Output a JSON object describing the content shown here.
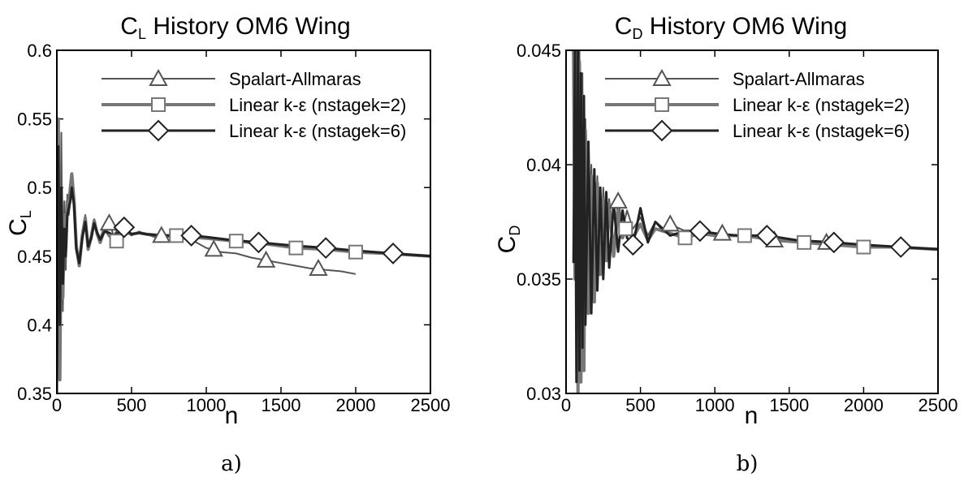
{
  "chart_data": [
    {
      "type": "line",
      "panel": "a",
      "caption": "a)",
      "title_main": "C",
      "title_sub": "L",
      "title_rest": " History OM6 Wing",
      "xlabel": "n",
      "ylabel_main": "C",
      "ylabel_sub": "L",
      "xlim": [
        0,
        2500
      ],
      "ylim": [
        0.35,
        0.6
      ],
      "xticks": [
        0,
        500,
        1000,
        1500,
        2000,
        2500
      ],
      "yticks": [
        0.35,
        0.4,
        0.45,
        0.5,
        0.55,
        0.6
      ],
      "xtick_labels": [
        "0",
        "500",
        "1000",
        "1500",
        "2000",
        "2500"
      ],
      "ytick_labels": [
        "0.35",
        "0.4",
        "0.45",
        "0.5",
        "0.55",
        "0.6"
      ],
      "legend_position": "top-right",
      "series": [
        {
          "name": "Spalart-Allmaras",
          "marker": "triangle",
          "color": "#555555",
          "stroke_width": 2,
          "x": [
            0,
            10,
            20,
            30,
            40,
            50,
            60,
            70,
            80,
            90,
            100,
            115,
            130,
            150,
            170,
            190,
            210,
            230,
            250,
            270,
            290,
            320,
            350,
            380,
            410,
            450,
            500,
            550,
            600,
            650,
            700,
            800,
            900,
            1000,
            1100,
            1200,
            1300,
            1400,
            1500,
            1600,
            1700,
            1750,
            1800,
            1900,
            2000
          ],
          "y": [
            0.36,
            0.52,
            0.38,
            0.54,
            0.41,
            0.49,
            0.44,
            0.495,
            0.48,
            0.49,
            0.5,
            0.485,
            0.455,
            0.443,
            0.462,
            0.48,
            0.457,
            0.465,
            0.477,
            0.468,
            0.463,
            0.473,
            0.475,
            0.465,
            0.47,
            0.468,
            0.465,
            0.468,
            0.466,
            0.464,
            0.465,
            0.463,
            0.462,
            0.456,
            0.453,
            0.452,
            0.449,
            0.447,
            0.445,
            0.443,
            0.441,
            0.441,
            0.44,
            0.439,
            0.437
          ],
          "marker_x": [
            350,
            700,
            1050,
            1400,
            1750
          ],
          "marker_y": [
            0.474,
            0.465,
            0.455,
            0.447,
            0.441
          ]
        },
        {
          "name": "Linear k-ε (nstagek=2)",
          "marker": "square",
          "color": "#777777",
          "stroke_width": 4,
          "x": [
            0,
            10,
            20,
            30,
            40,
            50,
            60,
            70,
            80,
            90,
            100,
            115,
            130,
            150,
            170,
            190,
            210,
            230,
            250,
            270,
            290,
            320,
            350,
            380,
            400,
            450,
            500,
            550,
            600,
            700,
            800,
            900,
            1000,
            1200,
            1400,
            1600,
            1800,
            2000,
            2200,
            2500
          ],
          "y": [
            0.37,
            0.55,
            0.36,
            0.5,
            0.42,
            0.48,
            0.455,
            0.49,
            0.485,
            0.5,
            0.51,
            0.49,
            0.458,
            0.443,
            0.465,
            0.478,
            0.455,
            0.464,
            0.476,
            0.466,
            0.46,
            0.47,
            0.465,
            0.462,
            0.461,
            0.468,
            0.466,
            0.467,
            0.466,
            0.465,
            0.465,
            0.464,
            0.463,
            0.461,
            0.459,
            0.456,
            0.455,
            0.453,
            0.452,
            0.45
          ],
          "marker_x": [
            400,
            800,
            1200,
            1600,
            2000
          ],
          "marker_y": [
            0.461,
            0.465,
            0.461,
            0.456,
            0.453
          ]
        },
        {
          "name": "Linear k-ε (nstagek=6)",
          "marker": "diamond",
          "color": "#222222",
          "stroke_width": 3,
          "x": [
            0,
            10,
            20,
            30,
            40,
            50,
            60,
            70,
            80,
            90,
            100,
            115,
            130,
            150,
            170,
            190,
            210,
            230,
            250,
            270,
            290,
            320,
            350,
            380,
            410,
            450,
            500,
            550,
            600,
            700,
            800,
            900,
            1000,
            1150,
            1350,
            1550,
            1800,
            2000,
            2250,
            2500
          ],
          "y": [
            0.35,
            0.53,
            0.4,
            0.5,
            0.43,
            0.47,
            0.45,
            0.48,
            0.485,
            0.49,
            0.5,
            0.487,
            0.455,
            0.445,
            0.463,
            0.475,
            0.457,
            0.463,
            0.474,
            0.467,
            0.462,
            0.468,
            0.467,
            0.465,
            0.467,
            0.471,
            0.466,
            0.467,
            0.466,
            0.465,
            0.465,
            0.465,
            0.464,
            0.462,
            0.46,
            0.458,
            0.456,
            0.454,
            0.452,
            0.45
          ],
          "marker_x": [
            450,
            900,
            1350,
            1800,
            2250
          ],
          "marker_y": [
            0.471,
            0.465,
            0.46,
            0.456,
            0.452
          ]
        }
      ]
    },
    {
      "type": "line",
      "panel": "b",
      "caption": "b)",
      "title_main": "C",
      "title_sub": "D",
      "title_rest": " History OM6 Wing",
      "xlabel": "n",
      "ylabel_main": "C",
      "ylabel_sub": "D",
      "xlim": [
        0,
        2500
      ],
      "ylim": [
        0.03,
        0.045
      ],
      "xticks": [
        0,
        500,
        1000,
        1500,
        2000,
        2500
      ],
      "yticks": [
        0.03,
        0.035,
        0.04,
        0.045
      ],
      "xtick_labels": [
        "0",
        "500",
        "1000",
        "1500",
        "2000",
        "2500"
      ],
      "ytick_labels": [
        "0.03",
        "0.035",
        "0.04",
        "0.045"
      ],
      "legend_position": "top-right",
      "series": [
        {
          "name": "Spalart-Allmaras",
          "marker": "triangle",
          "color": "#555555",
          "stroke_width": 2,
          "x": [
            50,
            60,
            70,
            80,
            90,
            100,
            110,
            120,
            130,
            150,
            170,
            190,
            210,
            230,
            250,
            270,
            290,
            320,
            350,
            380,
            410,
            450,
            500,
            550,
            600,
            650,
            700,
            800,
            900,
            1000,
            1100,
            1200,
            1400,
            1600,
            1800,
            2000,
            2200,
            2500
          ],
          "y": [
            0.0445,
            0.036,
            0.045,
            0.03,
            0.045,
            0.031,
            0.044,
            0.032,
            0.042,
            0.034,
            0.04,
            0.0345,
            0.0395,
            0.0355,
            0.039,
            0.036,
            0.0385,
            0.0365,
            0.0385,
            0.0372,
            0.038,
            0.0372,
            0.0377,
            0.0369,
            0.0375,
            0.0371,
            0.0374,
            0.0371,
            0.0371,
            0.037,
            0.0369,
            0.0369,
            0.0367,
            0.0366,
            0.0365,
            0.0364,
            0.0364,
            0.0363
          ],
          "marker_x": [
            350,
            700,
            1050,
            1400,
            1750
          ],
          "marker_y": [
            0.0384,
            0.0374,
            0.037,
            0.0367,
            0.0366
          ]
        },
        {
          "name": "Linear k-ε (nstagek=2)",
          "marker": "square",
          "color": "#777777",
          "stroke_width": 4,
          "x": [
            50,
            60,
            70,
            80,
            90,
            100,
            110,
            120,
            130,
            150,
            170,
            190,
            210,
            230,
            250,
            270,
            290,
            320,
            350,
            380,
            400,
            450,
            500,
            550,
            600,
            700,
            800,
            900,
            1000,
            1200,
            1400,
            1600,
            1800,
            2000,
            2200,
            2500
          ],
          "y": [
            0.045,
            0.035,
            0.045,
            0.03,
            0.0445,
            0.0305,
            0.043,
            0.031,
            0.0415,
            0.0335,
            0.0395,
            0.034,
            0.0392,
            0.0352,
            0.0385,
            0.0358,
            0.0383,
            0.036,
            0.038,
            0.0368,
            0.0372,
            0.0368,
            0.0374,
            0.0367,
            0.0372,
            0.037,
            0.0368,
            0.037,
            0.0369,
            0.0369,
            0.0367,
            0.0366,
            0.0365,
            0.0364,
            0.0364,
            0.0363
          ],
          "marker_x": [
            400,
            800,
            1200,
            1600,
            2000
          ],
          "marker_y": [
            0.0372,
            0.0368,
            0.0369,
            0.0366,
            0.0364
          ]
        },
        {
          "name": "Linear k-ε (nstagek=6)",
          "marker": "diamond",
          "color": "#222222",
          "stroke_width": 3,
          "x": [
            50,
            60,
            70,
            80,
            90,
            100,
            110,
            120,
            130,
            150,
            170,
            190,
            210,
            230,
            250,
            270,
            290,
            320,
            350,
            380,
            410,
            450,
            500,
            550,
            600,
            700,
            800,
            900,
            1000,
            1150,
            1350,
            1550,
            1800,
            2000,
            2250,
            2500
          ],
          "y": [
            0.0357,
            0.045,
            0.0305,
            0.045,
            0.031,
            0.044,
            0.032,
            0.043,
            0.033,
            0.041,
            0.0335,
            0.0398,
            0.0345,
            0.039,
            0.035,
            0.0388,
            0.0355,
            0.0383,
            0.0362,
            0.038,
            0.0368,
            0.0365,
            0.0381,
            0.0366,
            0.0375,
            0.0369,
            0.0371,
            0.0371,
            0.037,
            0.0369,
            0.0369,
            0.0367,
            0.0366,
            0.0365,
            0.0364,
            0.0363
          ],
          "marker_x": [
            450,
            900,
            1350,
            1800,
            2250
          ],
          "marker_y": [
            0.0365,
            0.0371,
            0.0369,
            0.0366,
            0.0364
          ]
        }
      ]
    }
  ]
}
